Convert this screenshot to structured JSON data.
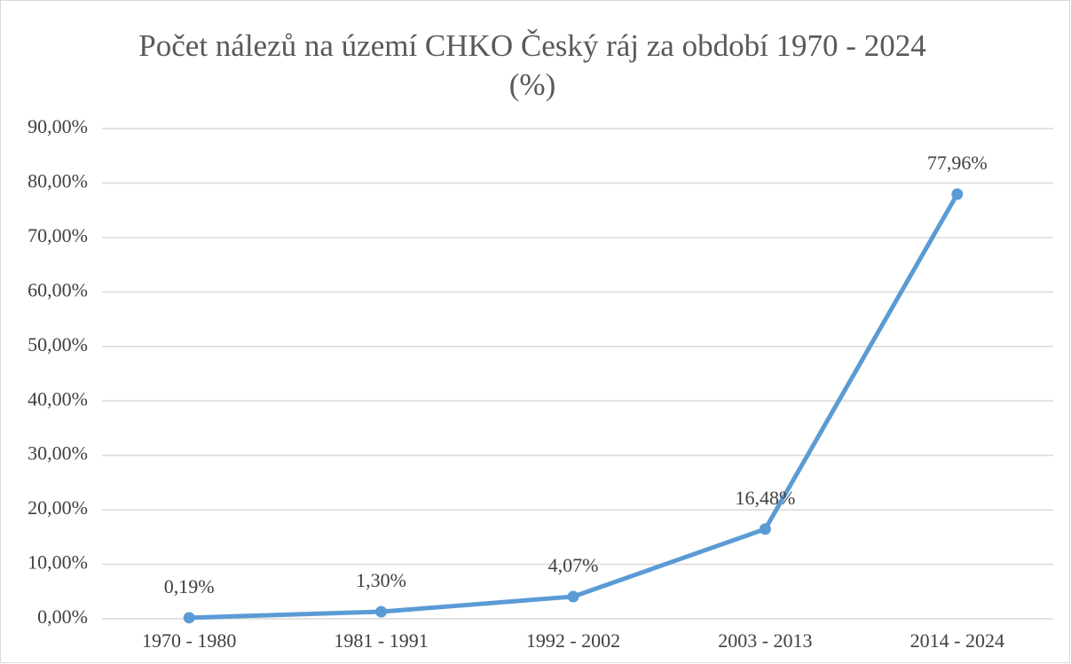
{
  "chart_data": {
    "type": "line",
    "title": "Počet nálezů na území CHKO Český ráj za období 1970 - 2024 (%)",
    "categories": [
      "1970 - 1980",
      "1981 - 1991",
      "1992 - 2002",
      "2003 - 2013",
      "2014 - 2024"
    ],
    "series": [
      {
        "name": "Počet nálezů",
        "color": "#5b9bd5",
        "values": [
          0.19,
          1.3,
          4.07,
          16.48,
          77.96
        ],
        "value_labels": [
          "0,19%",
          "1,30%",
          "4,07%",
          "16,48%",
          "77,96%"
        ]
      }
    ],
    "ylim": [
      0,
      90
    ],
    "yticks": [
      {
        "value": 0,
        "label": "0,00%"
      },
      {
        "value": 10,
        "label": "10,00%"
      },
      {
        "value": 20,
        "label": "20,00%"
      },
      {
        "value": 30,
        "label": "30,00%"
      },
      {
        "value": 40,
        "label": "40,00%"
      },
      {
        "value": 50,
        "label": "50,00%"
      },
      {
        "value": 60,
        "label": "60,00%"
      },
      {
        "value": 70,
        "label": "70,00%"
      },
      {
        "value": 80,
        "label": "80,00%"
      },
      {
        "value": 90,
        "label": "90,00%"
      }
    ],
    "grid": true
  }
}
